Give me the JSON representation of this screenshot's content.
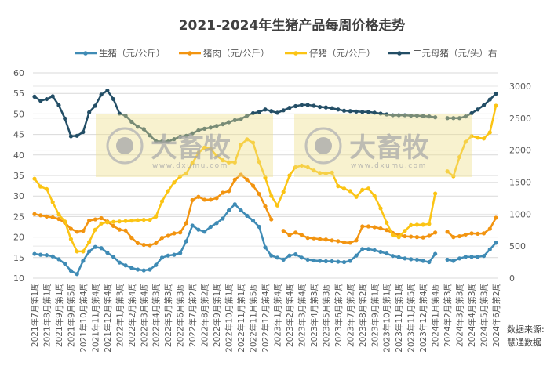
{
  "chart_data": {
    "type": "line",
    "title": "2021-2024年生猪产品每周价格走势",
    "source_label": "数据来源:",
    "source_name": "慧通数据",
    "legend_position": "top",
    "grid": true,
    "y_left": {
      "min": 10,
      "max": 60,
      "ticks": [
        10,
        15,
        20,
        25,
        30,
        35,
        40,
        45,
        50,
        55,
        60
      ]
    },
    "y_right": {
      "min": 0,
      "max": 3000,
      "ticks": [
        0,
        500,
        1000,
        1500,
        2000,
        2500,
        3000
      ]
    },
    "categories": [
      "2021年7月第1周",
      "",
      "2021年8月第1周",
      "",
      "2021年9月第1周",
      "",
      "2021年9月第5周",
      "",
      "2021年10月第4周",
      "",
      "2021年11月第4周",
      "",
      "2021年12月第4周",
      "",
      "2022年1月第3周",
      "",
      "2022年2月第4周",
      "",
      "2022年3月第4周",
      "",
      "2022年4月第3周",
      "",
      "2022年5月第3周",
      "",
      "2022年6月第3周",
      "",
      "2022年7月第2周",
      "",
      "2022年8月第2周",
      "",
      "2022年9月第1周",
      "",
      "2022年10月第1周",
      "",
      "2022年11月第1周",
      "",
      "2022年11月第5周",
      "",
      "2022年12月第4周",
      "",
      "2023年1月第4周",
      "",
      "2023年2月第4周",
      "",
      "2023年3月第4周",
      "",
      "2023年4月第3周",
      "",
      "2023年5月第3周",
      "",
      "2023年6月第2周",
      "",
      "2023年7月第2周",
      "",
      "2023年8月第2周",
      "",
      "2023年9月第1周",
      "",
      "2023年10月第1周",
      "",
      "2023年11月第1周",
      "",
      "2023年11月第5周",
      "",
      "2023年12月第4周",
      "",
      "2024年1月第4周",
      "",
      "2024年2月第3周",
      "",
      "2024年3月第3周",
      "",
      "2024年4月第3周",
      "",
      "2024年5月第3周",
      "",
      "2024年6月第2周"
    ],
    "series": [
      {
        "name": "生猪（元/公斤）",
        "axis": "left",
        "color": "#3f8bb5",
        "values": [
          15.9,
          15.7,
          15.6,
          15.3,
          14.6,
          13.5,
          11.8,
          11.0,
          14.2,
          16.5,
          17.6,
          17.3,
          16.2,
          15.2,
          13.8,
          13.1,
          12.5,
          12.1,
          11.9,
          12.1,
          13.2,
          15.0,
          15.5,
          15.7,
          16.1,
          19,
          22.8,
          21.8,
          21.3,
          22.5,
          23.4,
          24.5,
          26.5,
          28,
          26.5,
          25.2,
          24,
          22.5,
          17.5,
          15.5,
          15,
          14.5,
          15.5,
          15.8,
          15,
          14.5,
          14.3,
          14.2,
          14.1,
          14.1,
          14.0,
          13.9,
          14.2,
          15.5,
          17.1,
          17.1,
          16.8,
          16.4,
          16,
          15.4,
          15.1,
          14.8,
          14.6,
          14.5,
          14.2,
          13.9,
          15.9,
          null,
          14.5,
          14.2,
          14.8,
          15.2,
          15.2,
          15.2,
          15.4,
          17,
          18.6
        ]
      },
      {
        "name": "猪肉（元/公斤）",
        "axis": "left",
        "color": "#f29410",
        "values": [
          25.6,
          25.3,
          25.0,
          24.8,
          24.4,
          23.5,
          22.0,
          21.3,
          21.5,
          24.0,
          24.3,
          24.6,
          23.8,
          22.7,
          21.8,
          21.6,
          19.8,
          18.5,
          18.1,
          18.0,
          18.5,
          19.8,
          20.3,
          20.9,
          21.1,
          23.4,
          29,
          29.8,
          29.1,
          29.1,
          29.5,
          30.8,
          31.2,
          34,
          35.2,
          34,
          32.5,
          30.5,
          27.5,
          24.3,
          null,
          21.5,
          20.5,
          21.1,
          20.5,
          19.8,
          19.7,
          19.5,
          19.4,
          19.2,
          19.0,
          18.7,
          18.6,
          19.2,
          22.6,
          22.6,
          22.4,
          22.1,
          21.7,
          21.0,
          20.6,
          20.2,
          20.1,
          20.0,
          19.9,
          20.3,
          21.1,
          null,
          21.3,
          20.0,
          20.2,
          20.6,
          20.9,
          20.8,
          20.9,
          22,
          24.7
        ]
      },
      {
        "name": "仔猪（元/公斤）",
        "axis": "left",
        "color": "#fbc414",
        "values": [
          34.2,
          32.3,
          31.7,
          28.5,
          25.5,
          23.8,
          19.5,
          16.5,
          16.5,
          18.8,
          21.8,
          23.3,
          23.6,
          23.7,
          23.8,
          23.9,
          24.0,
          24.1,
          24.2,
          24.2,
          25,
          28.7,
          31.2,
          33.3,
          34.8,
          35.5,
          38,
          40.5,
          41.8,
          41.5,
          39.8,
          38.7,
          38.2,
          38.2,
          42.5,
          43.8,
          43,
          38.3,
          34.5,
          30,
          27.7,
          31.0,
          35,
          37,
          37.4,
          37,
          36.2,
          35.6,
          35.5,
          35.7,
          32.4,
          31.8,
          31.2,
          29.8,
          31.5,
          31.8,
          30,
          27,
          23.5,
          20.5,
          20,
          21.5,
          22.9,
          23,
          23,
          23.2,
          30.6,
          null,
          36.0,
          34.8,
          39.5,
          43.2,
          44.6,
          44.2,
          44.0,
          45.5,
          52.0
        ]
      },
      {
        "name": "二元母猪（元/头）右",
        "axis": "right",
        "color": "#234e66",
        "values": [
          2836,
          2771,
          2797,
          2842,
          2701,
          2495,
          2218,
          2225,
          2283,
          2591,
          2694,
          2868,
          2932,
          2797,
          2572,
          2540,
          2443,
          2366,
          2328,
          2231,
          2141,
          2135,
          2135,
          2173,
          2212,
          2225,
          2263,
          2308,
          2334,
          2353,
          2379,
          2405,
          2437,
          2469,
          2488,
          2540,
          2578,
          2598,
          2636,
          2611,
          2585,
          2623,
          2662,
          2688,
          2707,
          2707,
          2694,
          2675,
          2668,
          2656,
          2636,
          2617,
          2611,
          2604,
          2598,
          2598,
          2585,
          2572,
          2559,
          2546,
          2546,
          2546,
          2540,
          2540,
          2533,
          2527,
          2514,
          null,
          2501,
          2501,
          2501,
          2527,
          2578,
          2636,
          2701,
          2791,
          2881
        ]
      }
    ]
  },
  "watermark": {
    "brand": "大畜牧",
    "url": "www.dxumu.com"
  }
}
